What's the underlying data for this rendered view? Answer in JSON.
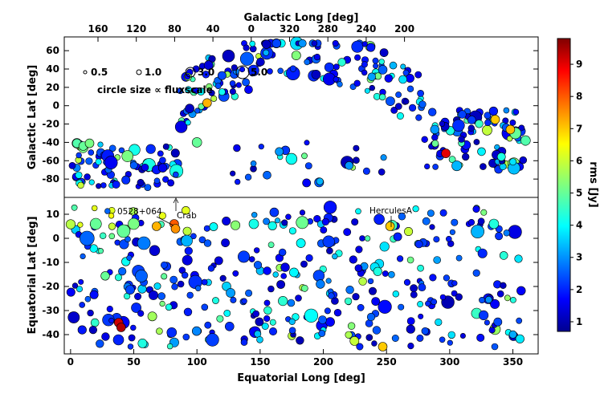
{
  "chart_data": [
    {
      "type": "scatter",
      "panel": "top",
      "title": "",
      "top_axis_label": "Galactic Long [deg]",
      "top_ticks": [
        "160",
        "120",
        "80",
        "40",
        "0",
        "320",
        "280",
        "240",
        "200"
      ],
      "xlabel": "",
      "ylabel": "Galactic Lat [deg]",
      "xlim": [
        -5,
        370
      ],
      "ylim": [
        -100,
        75
      ],
      "yticks": [
        60,
        40,
        20,
        0,
        -20,
        -40,
        -60,
        -80
      ],
      "legend": {
        "placement": "top-left",
        "sizes": [
          "0.5",
          "1.0",
          "3.0",
          "5.0"
        ],
        "caption": "circle size ∝ fluxscale"
      },
      "highlighted": [
        {
          "x": 108,
          "y": 3,
          "rms": 7.2
        },
        {
          "x": 336,
          "y": -15,
          "rms": 7.0
        },
        {
          "x": 348,
          "y": -26,
          "rms": 7.1
        },
        {
          "x": 297,
          "y": -52,
          "rms": 9.0
        },
        {
          "x": 5,
          "y": -41,
          "rms": 4.8
        },
        {
          "x": 10,
          "y": -44,
          "rms": 5.0
        },
        {
          "x": 15,
          "y": -41,
          "rms": 5.2
        }
      ]
    },
    {
      "type": "scatter",
      "panel": "bottom",
      "title": "",
      "xlabel": "Equatorial Long [deg]",
      "ylabel": "Equatorial Lat [deg]",
      "xlim": [
        -5,
        370
      ],
      "ylim": [
        -48,
        17
      ],
      "xticks": [
        0,
        50,
        100,
        150,
        200,
        250,
        300,
        350
      ],
      "yticks": [
        10,
        0,
        -10,
        -20,
        -30,
        -40
      ],
      "annotations": [
        {
          "text": "0528+064",
          "x": 82,
          "y": 6
        },
        {
          "text": "Crab",
          "x": 83.6,
          "y": 22
        },
        {
          "text": "HerculesA",
          "x": 252.8,
          "y": 5
        }
      ],
      "highlighted": [
        {
          "x": 82,
          "y": 6,
          "rms": 8.0
        },
        {
          "x": 83,
          "y": 4,
          "rms": 7.5
        },
        {
          "x": 68,
          "y": 5,
          "rms": 7.2
        },
        {
          "x": 252.8,
          "y": 5,
          "rms": 7.0
        },
        {
          "x": 247,
          "y": -45,
          "rms": 7.0
        },
        {
          "x": 38,
          "y": -35,
          "rms": 9.2
        },
        {
          "x": 40,
          "y": -37,
          "rms": 9.4
        }
      ]
    }
  ],
  "colorbar": {
    "label": "rms [Jy]",
    "ticks": [
      "9",
      "8",
      "7",
      "6",
      "5",
      "4",
      "3",
      "2",
      "1"
    ],
    "range": [
      0.7,
      9.8
    ]
  }
}
